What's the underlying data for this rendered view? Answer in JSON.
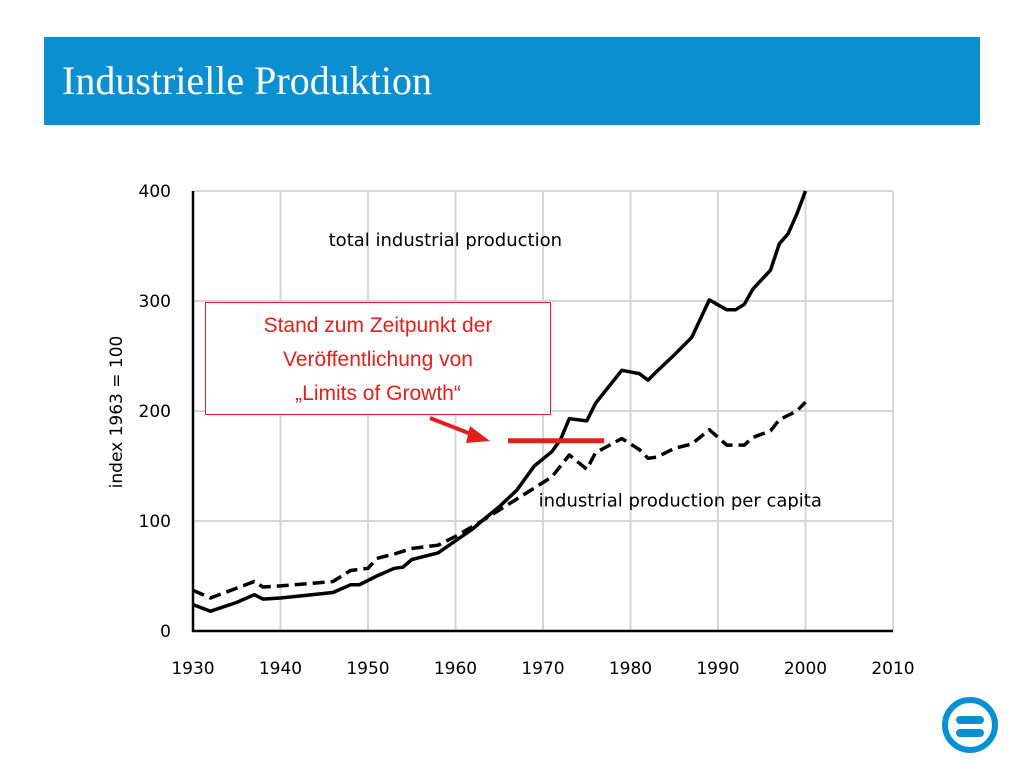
{
  "header": {
    "title": "Industrielle Produktion"
  },
  "callout": {
    "lines": [
      "Stand zum Zeitpunkt der",
      "Veröffentlichung von",
      "„Limits of Growth“"
    ],
    "marker_year_range": [
      1966,
      1977
    ],
    "marker_value": 173,
    "color": "#e0201c"
  },
  "logo": {
    "icon": "equals-circle-icon",
    "color": "#0a8fd0"
  },
  "chart_data": {
    "type": "line",
    "title": "",
    "xlabel": "",
    "ylabel": "index 1963 = 100",
    "xlim": [
      1930,
      2010
    ],
    "ylim": [
      0,
      400
    ],
    "x_ticks": [
      1930,
      1940,
      1950,
      1960,
      1970,
      1980,
      1990,
      2000,
      2010
    ],
    "y_ticks": [
      0,
      100,
      200,
      300,
      400
    ],
    "grid": true,
    "series": [
      {
        "name": "total industrial production",
        "style": "solid",
        "points": [
          [
            1930,
            24
          ],
          [
            1932,
            18
          ],
          [
            1935,
            26
          ],
          [
            1937,
            33
          ],
          [
            1938,
            29
          ],
          [
            1940,
            30
          ],
          [
            1946,
            35
          ],
          [
            1948,
            42
          ],
          [
            1949,
            42
          ],
          [
            1951,
            50
          ],
          [
            1953,
            57
          ],
          [
            1954,
            58
          ],
          [
            1955,
            65
          ],
          [
            1958,
            71
          ],
          [
            1960,
            82
          ],
          [
            1962,
            93
          ],
          [
            1963,
            100
          ],
          [
            1965,
            113
          ],
          [
            1967,
            128
          ],
          [
            1969,
            150
          ],
          [
            1971,
            163
          ],
          [
            1972,
            174
          ],
          [
            1973,
            193
          ],
          [
            1975,
            191
          ],
          [
            1976,
            207
          ],
          [
            1979,
            237
          ],
          [
            1981,
            234
          ],
          [
            1982,
            228
          ],
          [
            1983,
            236
          ],
          [
            1985,
            251
          ],
          [
            1987,
            267
          ],
          [
            1989,
            301
          ],
          [
            1991,
            292
          ],
          [
            1992,
            292
          ],
          [
            1993,
            297
          ],
          [
            1994,
            311
          ],
          [
            1996,
            328
          ],
          [
            1997,
            352
          ],
          [
            1998,
            361
          ],
          [
            1999,
            379
          ],
          [
            2000,
            400
          ]
        ]
      },
      {
        "name": "industrial production per capita",
        "style": "dashed",
        "points": [
          [
            1930,
            37
          ],
          [
            1932,
            30
          ],
          [
            1935,
            39
          ],
          [
            1937,
            45
          ],
          [
            1938,
            40
          ],
          [
            1940,
            41
          ],
          [
            1946,
            45
          ],
          [
            1948,
            55
          ],
          [
            1950,
            57
          ],
          [
            1951,
            66
          ],
          [
            1953,
            70
          ],
          [
            1955,
            75
          ],
          [
            1958,
            78
          ],
          [
            1960,
            86
          ],
          [
            1963,
            100
          ],
          [
            1965,
            110
          ],
          [
            1967,
            120
          ],
          [
            1969,
            130
          ],
          [
            1971,
            140
          ],
          [
            1973,
            160
          ],
          [
            1975,
            147
          ],
          [
            1976,
            162
          ],
          [
            1979,
            175
          ],
          [
            1981,
            165
          ],
          [
            1982,
            157
          ],
          [
            1983,
            158
          ],
          [
            1985,
            166
          ],
          [
            1987,
            170
          ],
          [
            1989,
            183
          ],
          [
            1991,
            169
          ],
          [
            1993,
            169
          ],
          [
            1994,
            176
          ],
          [
            1996,
            182
          ],
          [
            1997,
            192
          ],
          [
            1999,
            200
          ],
          [
            2000,
            208
          ]
        ]
      }
    ]
  }
}
